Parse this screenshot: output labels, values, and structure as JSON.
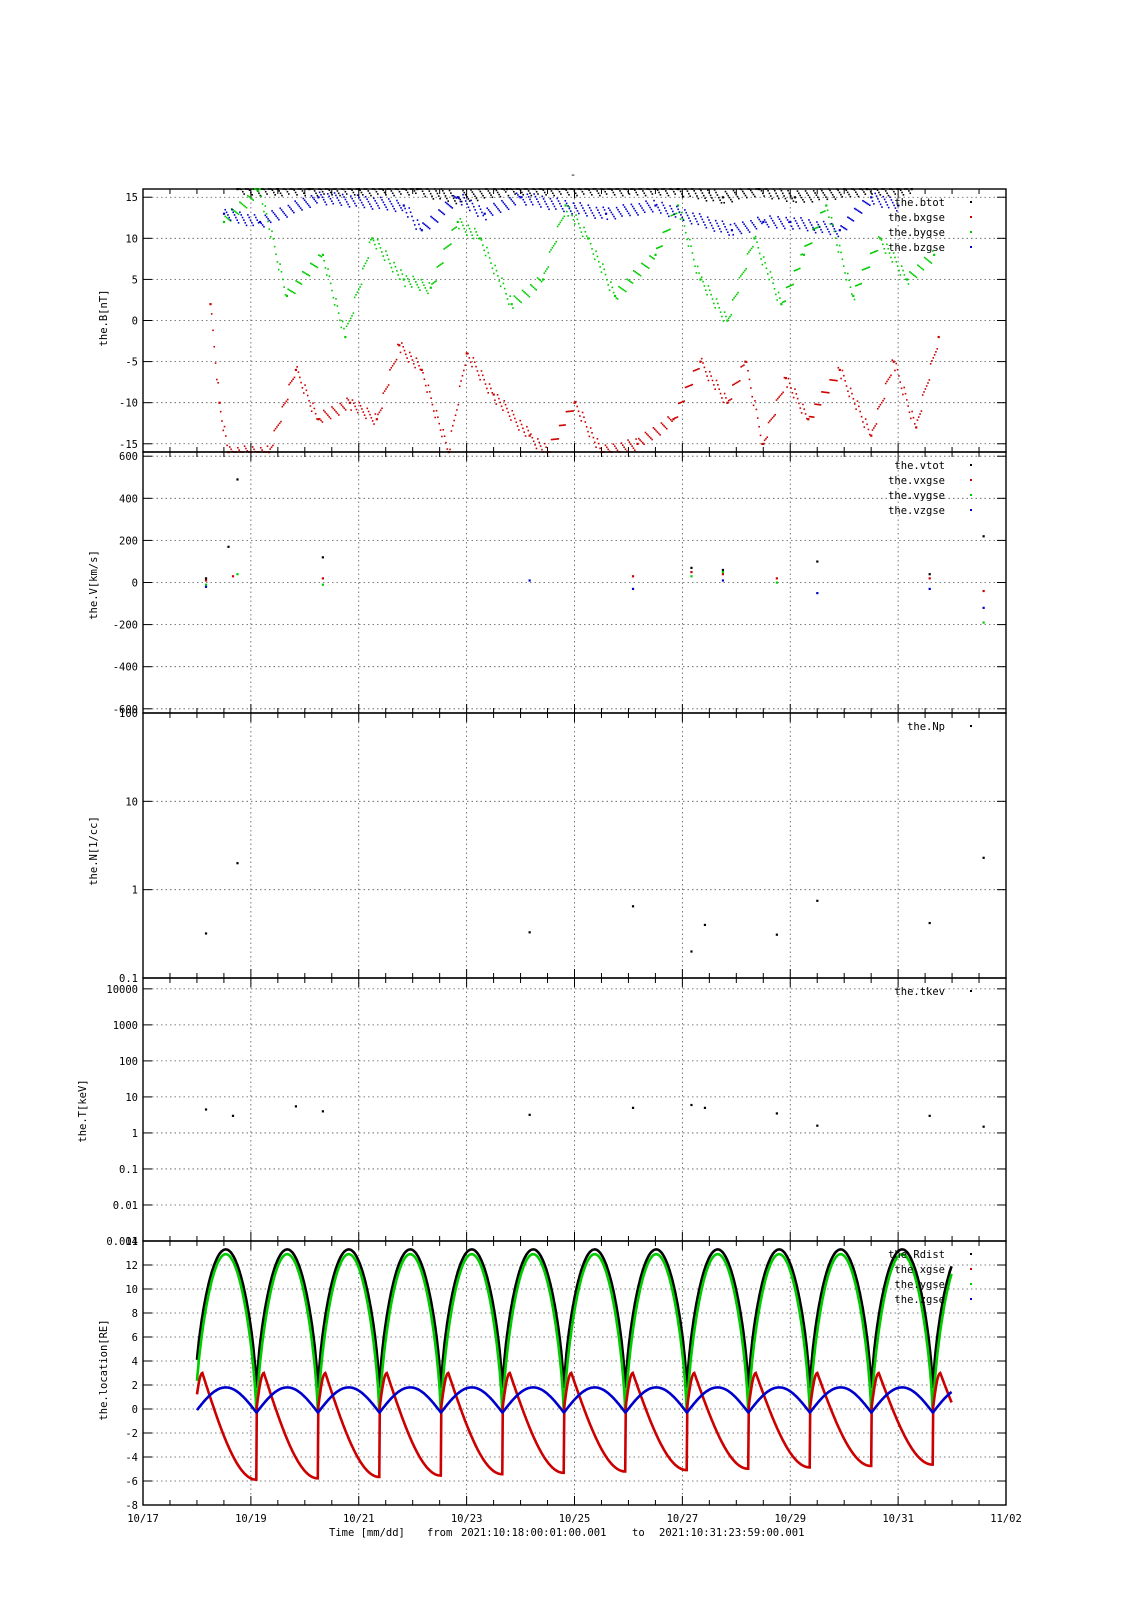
{
  "top_mark": "-",
  "footer": {
    "time_label": "Time [mm/dd]",
    "from_label": "from",
    "start": "2021:10:18:00:01:00.001",
    "to_label": "to",
    "end": "2021:10:31:23:59:00.001"
  },
  "colors": {
    "black": "#000000",
    "red": "#cc0000",
    "green": "#00cc00",
    "blue": "#0000cc"
  },
  "chart_data": [
    {
      "type": "scatter",
      "ylabel": "the.B[nT]",
      "ylim": [
        -16,
        16
      ],
      "yticks": [
        -15,
        -10,
        -5,
        0,
        5,
        10,
        15
      ],
      "ytick_labels": [
        "-15",
        "-10",
        "-5",
        "0",
        "5",
        "10",
        "15"
      ],
      "legend_position": "top-right",
      "xlim": [
        "2021-10-17",
        "2021-11-02"
      ],
      "series": [
        {
          "name": "the.btot",
          "color": "#000000",
          "points": [
            [
              "10/18 18:00",
              16
            ],
            [
              "10/19 12:00",
              16
            ],
            [
              "10/20 02:00",
              16
            ],
            [
              "10/21 00:00",
              16
            ],
            [
              "10/22 02:00",
              16
            ],
            [
              "10/22 20:00",
              15
            ],
            [
              "10/23 18:00",
              16
            ],
            [
              "10/26 22:00",
              16
            ],
            [
              "10/27 18:00",
              15
            ],
            [
              "10/28 10:00",
              16
            ],
            [
              "10/29 02:00",
              15
            ],
            [
              "10/30 10:00",
              16
            ],
            [
              "10/31 06:00",
              16
            ]
          ]
        },
        {
          "name": "the.bxgse",
          "color": "#cc0000",
          "points": [
            [
              "10/18 06:00",
              2
            ],
            [
              "10/18 10:00",
              -10
            ],
            [
              "10/18 14:00",
              -16
            ],
            [
              "10/19 08:00",
              -16
            ],
            [
              "10/19 20:00",
              -6
            ],
            [
              "10/20 06:00",
              -12
            ],
            [
              "10/20 20:00",
              -10
            ],
            [
              "10/21 08:00",
              -12
            ],
            [
              "10/21 18:00",
              -3
            ],
            [
              "10/22 04:00",
              -6
            ],
            [
              "10/22 16:00",
              -16
            ],
            [
              "10/23 00:00",
              -4
            ],
            [
              "10/23 12:00",
              -9
            ],
            [
              "10/24 04:00",
              -14
            ],
            [
              "10/24 12:00",
              -16
            ],
            [
              "10/25 00:00",
              -10
            ],
            [
              "10/25 12:00",
              -16
            ],
            [
              "10/26 04:00",
              -15
            ],
            [
              "10/26 20:00",
              -12
            ],
            [
              "10/27 08:00",
              -5
            ],
            [
              "10/27 20:00",
              -10
            ],
            [
              "10/28 04:00",
              -5
            ],
            [
              "10/28 12:00",
              -15
            ],
            [
              "10/28 22:00",
              -7
            ],
            [
              "10/29 08:00",
              -12
            ],
            [
              "10/29 22:00",
              -6
            ],
            [
              "10/30 12:00",
              -14
            ],
            [
              "10/30 22:00",
              -5
            ],
            [
              "10/31 08:00",
              -13
            ],
            [
              "10/31 18:00",
              -2
            ]
          ]
        },
        {
          "name": "the.bygse",
          "color": "#00cc00",
          "points": [
            [
              "10/18 12:00",
              12
            ],
            [
              "10/19 04:00",
              16
            ],
            [
              "10/19 16:00",
              3
            ],
            [
              "10/20 08:00",
              8
            ],
            [
              "10/20 18:00",
              -2
            ],
            [
              "10/21 06:00",
              10
            ],
            [
              "10/21 20:00",
              5
            ],
            [
              "10/22 08:00",
              4
            ],
            [
              "10/22 20:00",
              12
            ],
            [
              "10/23 06:00",
              10
            ],
            [
              "10/23 20:00",
              2
            ],
            [
              "10/24 10:00",
              5
            ],
            [
              "10/24 20:00",
              14
            ],
            [
              "10/25 06:00",
              10
            ],
            [
              "10/25 18:00",
              3
            ],
            [
              "10/26 12:00",
              8
            ],
            [
              "10/26 22:00",
              14
            ],
            [
              "10/27 08:00",
              5
            ],
            [
              "10/27 20:00",
              0
            ],
            [
              "10/28 08:00",
              10
            ],
            [
              "10/28 20:00",
              2
            ],
            [
              "10/29 06:00",
              8
            ],
            [
              "10/29 16:00",
              14
            ],
            [
              "10/30 04:00",
              3
            ],
            [
              "10/30 16:00",
              10
            ],
            [
              "10/31 04:00",
              5
            ],
            [
              "10/31 16:00",
              8
            ]
          ]
        },
        {
          "name": "the.bzgse",
          "color": "#0000cc",
          "points": [
            [
              "10/18 12:00",
              13
            ],
            [
              "10/19 04:00",
              12
            ],
            [
              "10/20 06:00",
              15
            ],
            [
              "10/21 20:00",
              14
            ],
            [
              "10/22 04:00",
              11
            ],
            [
              "10/22 20:00",
              15
            ],
            [
              "10/23 08:00",
              13
            ],
            [
              "10/24 00:00",
              15
            ],
            [
              "10/25 14:00",
              13
            ],
            [
              "10/26 12:00",
              14
            ],
            [
              "10/27 22:00",
              11
            ],
            [
              "10/28 12:00",
              12
            ],
            [
              "10/29 00:00",
              12
            ],
            [
              "10/29 22:00",
              11
            ],
            [
              "10/30 12:00",
              15
            ],
            [
              "10/31 00:00",
              14
            ]
          ]
        }
      ]
    },
    {
      "type": "scatter",
      "ylabel": "the.V[km/s]",
      "ylim": [
        -620,
        620
      ],
      "yticks": [
        -600,
        -400,
        -200,
        0,
        200,
        400,
        600
      ],
      "ytick_labels": [
        "-600",
        "-400",
        "-200",
        "0",
        "200",
        "400",
        "600"
      ],
      "legend_position": "top-right",
      "xlim": [
        "2021-10-17",
        "2021-11-02"
      ],
      "series": [
        {
          "name": "the.vtot",
          "color": "#000000",
          "points": [
            [
              "10/18 04:00",
              20
            ],
            [
              "10/18 14:00",
              170
            ],
            [
              "10/18 18:00",
              490
            ],
            [
              "10/20 08:00",
              120
            ],
            [
              "10/27 04:00",
              70
            ],
            [
              "10/27 18:00",
              60
            ],
            [
              "10/29 12:00",
              100
            ],
            [
              "10/31 14:00",
              40
            ],
            [
              "11/01 14:00",
              220
            ]
          ]
        },
        {
          "name": "the.vxgse",
          "color": "#cc0000",
          "points": [
            [
              "10/18 04:00",
              10
            ],
            [
              "10/18 16:00",
              30
            ],
            [
              "10/20 08:00",
              20
            ],
            [
              "10/26 02:00",
              30
            ],
            [
              "10/27 04:00",
              50
            ],
            [
              "10/27 18:00",
              40
            ],
            [
              "10/28 18:00",
              20
            ],
            [
              "10/31 14:00",
              20
            ],
            [
              "11/01 14:00",
              -40
            ]
          ]
        },
        {
          "name": "the.vygse",
          "color": "#00cc00",
          "points": [
            [
              "10/18 04:00",
              -10
            ],
            [
              "10/18 18:00",
              40
            ],
            [
              "10/20 08:00",
              -10
            ],
            [
              "10/27 04:00",
              30
            ],
            [
              "10/27 18:00",
              50
            ],
            [
              "10/28 18:00",
              0
            ],
            [
              "11/01 14:00",
              -190
            ]
          ]
        },
        {
          "name": "the.vzgse",
          "color": "#0000cc",
          "points": [
            [
              "10/18 04:00",
              -20
            ],
            [
              "10/24 04:00",
              10
            ],
            [
              "10/26 02:00",
              -30
            ],
            [
              "10/27 18:00",
              10
            ],
            [
              "10/29 12:00",
              -50
            ],
            [
              "10/31 14:00",
              -30
            ],
            [
              "11/01 14:00",
              -120
            ]
          ]
        }
      ]
    },
    {
      "type": "scatter",
      "ylabel": "the.N[1/cc]",
      "yscale": "log",
      "ylim": [
        0.1,
        100
      ],
      "yticks": [
        0.1,
        1,
        10,
        100
      ],
      "ytick_labels": [
        "0.1",
        "1",
        "10",
        "100"
      ],
      "legend_position": "top-right",
      "xlim": [
        "2021-10-17",
        "2021-11-02"
      ],
      "series": [
        {
          "name": "the.Np",
          "color": "#000000",
          "points": [
            [
              "10/18 04:00",
              0.32
            ],
            [
              "10/18 18:00",
              2.0
            ],
            [
              "10/24 04:00",
              0.33
            ],
            [
              "10/26 02:00",
              0.65
            ],
            [
              "10/27 04:00",
              0.2
            ],
            [
              "10/27 10:00",
              0.4
            ],
            [
              "10/28 18:00",
              0.31
            ],
            [
              "10/29 12:00",
              0.75
            ],
            [
              "10/31 14:00",
              0.42
            ],
            [
              "11/01 14:00",
              2.3
            ]
          ]
        }
      ]
    },
    {
      "type": "scatter",
      "ylabel": "the.T[keV]",
      "yscale": "log",
      "ylim": [
        0.001,
        20000
      ],
      "yticks": [
        0.001,
        0.01,
        0.1,
        1,
        10,
        100,
        1000,
        10000
      ],
      "ytick_labels": [
        "0.001",
        "0.01",
        "0.1",
        "1",
        "10",
        "100",
        "1000",
        "10000"
      ],
      "legend_position": "top-right",
      "xlim": [
        "2021-10-17",
        "2021-11-02"
      ],
      "series": [
        {
          "name": "the.tkev",
          "color": "#000000",
          "points": [
            [
              "10/18 04:00",
              4.5
            ],
            [
              "10/18 16:00",
              3.0
            ],
            [
              "10/19 20:00",
              5.5
            ],
            [
              "10/20 08:00",
              4.0
            ],
            [
              "10/24 04:00",
              3.2
            ],
            [
              "10/26 02:00",
              5.0
            ],
            [
              "10/27 04:00",
              6.0
            ],
            [
              "10/27 10:00",
              5.0
            ],
            [
              "10/28 18:00",
              3.5
            ],
            [
              "10/29 12:00",
              1.6
            ],
            [
              "10/31 14:00",
              3.0
            ],
            [
              "11/01 14:00",
              1.5
            ]
          ]
        }
      ]
    },
    {
      "type": "line",
      "ylabel": "the.location[RE]",
      "ylim": [
        -8,
        14
      ],
      "yticks": [
        -8,
        -6,
        -4,
        -2,
        0,
        2,
        4,
        6,
        8,
        10,
        12,
        14
      ],
      "ytick_labels": [
        "-8",
        "-6",
        "-4",
        "-2",
        "0",
        "2",
        "4",
        "6",
        "8",
        "10",
        "12",
        "14"
      ],
      "legend_position": "top-right",
      "xlim": [
        "2021-10-17",
        "2021-11-02"
      ],
      "xticks": [
        "10/17",
        "10/19",
        "10/21",
        "10/23",
        "10/25",
        "10/27",
        "10/29",
        "10/31",
        "11/02"
      ],
      "orbit": {
        "start": "10/18 00:01",
        "end": "10/31 23:59",
        "period_days": 1.14,
        "first_perigee": "10/19 02:30",
        "apogee_phase": 0.48
      },
      "series": [
        {
          "name": "the.Rdist",
          "color": "#000000",
          "perigee": 1.0,
          "apogee": 13.3
        },
        {
          "name": "the.xgse",
          "color": "#cc0000",
          "max": 3.0,
          "min_start": -6.0,
          "min_end": -4.6
        },
        {
          "name": "the.ygse",
          "color": "#00cc00",
          "perigee": -1.0,
          "apogee": 12.9
        },
        {
          "name": "the.zgse",
          "color": "#0000cc",
          "max": 1.8,
          "min": -0.3
        }
      ]
    }
  ]
}
